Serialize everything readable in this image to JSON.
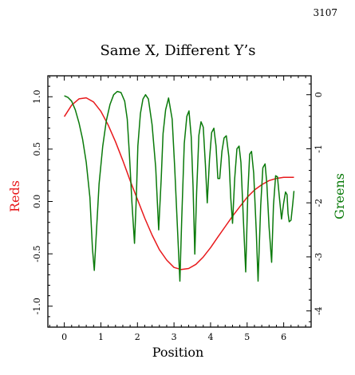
{
  "page_number": "3107",
  "chart_data": {
    "type": "line",
    "title": "Same X, Different Y’s",
    "xlabel": "Position",
    "ylabel_left": "Reds",
    "ylabel_right": "Greens",
    "xlim": [
      -0.45,
      6.75
    ],
    "ylim_left": [
      -1.2,
      1.2
    ],
    "ylim_right": [
      -4.3,
      0.35
    ],
    "x_ticks": [
      0,
      1,
      2,
      3,
      4,
      5,
      6
    ],
    "y_ticks_left": [
      -1.0,
      -0.5,
      0.0,
      0.5,
      1.0
    ],
    "y_tick_labels_left": [
      "-1.0",
      "-0.5",
      "0.0",
      "0.5",
      "1.0"
    ],
    "y_ticks_right": [
      -4,
      -3,
      -2,
      -1,
      0
    ],
    "y_tick_labels_right": [
      "-4",
      "-3",
      "-2",
      "-1",
      "0"
    ],
    "grid": false,
    "colors": {
      "reds": "#e8191c",
      "greens": "#0a7a0a",
      "axis": "#000000"
    },
    "series": [
      {
        "axis": "left",
        "color": "#e8191c",
        "x": [
          0,
          0.2,
          0.4,
          0.6,
          0.8,
          1.0,
          1.2,
          1.4,
          1.6,
          1.8,
          2.0,
          2.2,
          2.4,
          2.6,
          2.8,
          3.0,
          3.2,
          3.4,
          3.6,
          3.8,
          4.0,
          4.2,
          4.4,
          4.6,
          4.8,
          5.0,
          5.2,
          5.4,
          5.6,
          5.8,
          6.0,
          6.28
        ],
        "values": [
          0.81,
          0.92,
          0.98,
          0.99,
          0.95,
          0.86,
          0.73,
          0.57,
          0.39,
          0.2,
          0.02,
          -0.16,
          -0.32,
          -0.46,
          -0.56,
          -0.63,
          -0.65,
          -0.64,
          -0.6,
          -0.53,
          -0.44,
          -0.34,
          -0.24,
          -0.14,
          -0.05,
          0.04,
          0.11,
          0.16,
          0.2,
          0.22,
          0.23,
          0.23
        ]
      },
      {
        "axis": "right",
        "color": "#0a7a0a",
        "x": [
          0,
          0.1,
          0.2,
          0.3,
          0.4,
          0.5,
          0.6,
          0.7,
          0.77,
          0.82,
          0.88,
          0.95,
          1.05,
          1.15,
          1.25,
          1.35,
          1.45,
          1.55,
          1.65,
          1.72,
          1.78,
          1.85,
          1.92,
          1.97,
          2.01,
          2.08,
          2.15,
          2.22,
          2.3,
          2.4,
          2.5,
          2.58,
          2.65,
          2.7,
          2.77,
          2.85,
          2.95,
          3.02,
          3.1,
          3.16,
          3.21,
          3.28,
          3.35,
          3.41,
          3.47,
          3.52,
          3.57,
          3.62,
          3.68,
          3.74,
          3.8,
          3.86,
          3.91,
          3.97,
          4.03,
          4.09,
          4.15,
          4.2,
          4.25,
          4.31,
          4.37,
          4.43,
          4.5,
          4.55,
          4.6,
          4.66,
          4.72,
          4.78,
          4.83,
          4.9,
          4.96,
          5.02,
          5.07,
          5.12,
          5.18,
          5.25,
          5.3,
          5.37,
          5.43,
          5.49,
          5.54,
          5.6,
          5.67,
          5.72,
          5.78,
          5.83,
          5.88,
          5.94,
          6.0,
          6.05,
          6.09,
          6.12,
          6.15,
          6.2,
          6.25,
          6.28
        ],
        "values": [
          -0.02,
          -0.05,
          -0.12,
          -0.28,
          -0.52,
          -0.82,
          -1.25,
          -1.9,
          -2.85,
          -3.25,
          -2.5,
          -1.65,
          -0.95,
          -0.48,
          -0.18,
          0.0,
          0.06,
          0.04,
          -0.12,
          -0.45,
          -1.1,
          -2.0,
          -2.75,
          -1.9,
          -0.95,
          -0.35,
          -0.08,
          0.0,
          -0.08,
          -0.55,
          -1.35,
          -2.5,
          -1.55,
          -0.72,
          -0.28,
          -0.06,
          -0.45,
          -1.35,
          -2.55,
          -3.45,
          -2.3,
          -0.9,
          -0.4,
          -0.3,
          -0.78,
          -1.7,
          -2.95,
          -1.8,
          -0.75,
          -0.5,
          -0.6,
          -1.3,
          -2.0,
          -1.2,
          -0.7,
          -0.62,
          -0.95,
          -1.55,
          -1.55,
          -1.05,
          -0.8,
          -0.76,
          -1.15,
          -1.9,
          -2.38,
          -1.55,
          -1.0,
          -0.95,
          -1.25,
          -2.35,
          -3.28,
          -1.8,
          -1.1,
          -1.05,
          -1.45,
          -2.55,
          -3.45,
          -2.05,
          -1.35,
          -1.28,
          -1.65,
          -2.45,
          -3.1,
          -2.05,
          -1.5,
          -1.52,
          -1.88,
          -2.3,
          -2.0,
          -1.8,
          -1.85,
          -2.2,
          -2.35,
          -2.32,
          -2.0,
          -1.78
        ]
      }
    ]
  }
}
